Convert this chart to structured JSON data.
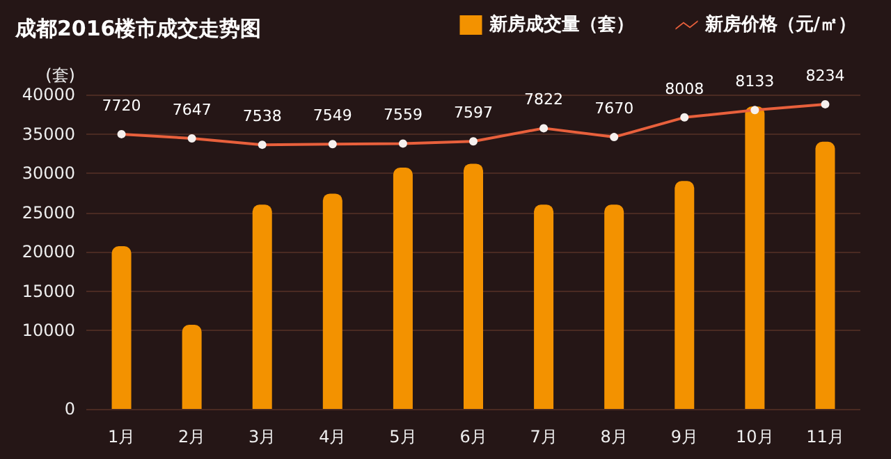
{
  "chart_data": {
    "type": "bar",
    "title": "成都2016楼市成交走势图",
    "ylabel": "(套)",
    "categories": [
      "1月",
      "2月",
      "3月",
      "4月",
      "5月",
      "6月",
      "7月",
      "8月",
      "9月",
      "10月",
      "11月"
    ],
    "series": [
      {
        "name": "新房成交量（套）",
        "color": "#f39200",
        "values": [
          20700,
          10700,
          26000,
          27400,
          30700,
          31200,
          26000,
          26000,
          29000,
          38500,
          34000
        ]
      },
      {
        "name": "新房价格（元/㎡）",
        "type": "line",
        "axis": "y2",
        "color": "#e8603c",
        "data_labels": true,
        "values": [
          7720,
          7647,
          7538,
          7549,
          7559,
          7597,
          7822,
          7670,
          8008,
          8133,
          8234
        ]
      }
    ],
    "ylim": [
      0,
      40000
    ],
    "yticks": [
      0,
      10000,
      15000,
      20000,
      25000,
      30000,
      35000,
      40000
    ],
    "y2lim": [
      3000,
      8400
    ],
    "grid": "y",
    "legend": "top right",
    "marker": "circle"
  }
}
